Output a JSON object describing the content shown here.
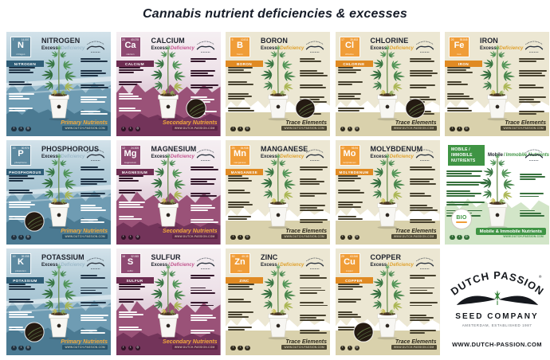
{
  "page": {
    "title": "Cannabis nutrient deficiencies & excesses"
  },
  "labels": {
    "excess": "Excess",
    "separator": "/",
    "deficiency": "Deficiency"
  },
  "branding": {
    "stamp_name": "Dutch Passion",
    "arc_text": "DUTCH PASSION",
    "registered_mark": "®",
    "seed_company": "SEED COMPANY",
    "established": "AMSTERDAM, ESTABLISHED 1987",
    "website": "WWW.DUTCH-PASSION.COM"
  },
  "categories": {
    "primary": "Primary Nutrients",
    "secondary": "Secondary Nutrients",
    "trace": "Trace Elements",
    "mobility": "Mobile & Immobile Nutrients"
  },
  "colors": {
    "primary_blue": "#6f9cb3",
    "secondary_purple": "#9a5278",
    "trace_cream": "#ece7d3",
    "trace_orange": "#f09d38",
    "mobility_green": "#3f9444",
    "badge_gold": "#f2a93b",
    "title_ink": "#20242e"
  },
  "grid": [
    {
      "type": "nutrient",
      "id": "nitrogen",
      "title": "NITROGEN",
      "symbol": "N",
      "atomic_number": "7",
      "atomic_mass": "14.007",
      "element_name": "nitrogen",
      "element_label": "NITROGEN",
      "theme": "blue",
      "category": "primary",
      "inset": null
    },
    {
      "type": "nutrient",
      "id": "calcium",
      "title": "CALCIUM",
      "symbol": "Ca",
      "atomic_number": "20",
      "atomic_mass": "40.078",
      "element_name": "calcium",
      "element_label": "CALCIUM",
      "theme": "purple",
      "category": "secondary",
      "inset": "br"
    },
    {
      "type": "nutrient",
      "id": "boron",
      "title": "BORON",
      "symbol": "B",
      "atomic_number": "5",
      "atomic_mass": "10.811",
      "element_name": "boron",
      "element_label": "BORON",
      "theme": "cream",
      "category": "trace",
      "inset": "br"
    },
    {
      "type": "nutrient",
      "id": "chlorine",
      "title": "CHLORINE",
      "symbol": "Cl",
      "atomic_number": "17",
      "atomic_mass": "35.453",
      "element_name": "chlorine",
      "element_label": "CHLORINE",
      "theme": "cream",
      "category": "trace",
      "inset": "br"
    },
    {
      "type": "nutrient",
      "id": "iron",
      "title": "IRON",
      "symbol": "Fe",
      "atomic_number": "26",
      "atomic_mass": "55.845",
      "element_name": "iron",
      "element_label": "IRON",
      "theme": "cream",
      "category": "trace",
      "inset": null
    },
    {
      "type": "nutrient",
      "id": "phosphorous",
      "title": "PHOSPHOROUS",
      "symbol": "P",
      "atomic_number": "15",
      "atomic_mass": "30.974",
      "element_name": "phosphorus",
      "element_label": "PHOSPHOROUS",
      "theme": "blue",
      "category": "primary",
      "inset": "bl"
    },
    {
      "type": "nutrient",
      "id": "magnesium",
      "title": "MAGNESIUM",
      "symbol": "Mg",
      "atomic_number": "12",
      "atomic_mass": "24.305",
      "element_name": "magnesium",
      "element_label": "MAGNESIUM",
      "theme": "purple",
      "category": "secondary",
      "inset": null
    },
    {
      "type": "nutrient",
      "id": "manganese",
      "title": "MANGANESE",
      "symbol": "Mn",
      "atomic_number": "25",
      "atomic_mass": "54.938",
      "element_name": "manganese",
      "element_label": "MANGANESE",
      "theme": "cream",
      "category": "trace",
      "inset": null
    },
    {
      "type": "nutrient",
      "id": "molybdenum",
      "title": "MOLYBDENUM",
      "symbol": "Mo",
      "atomic_number": "42",
      "atomic_mass": "95.94",
      "element_name": "molybdenum",
      "element_label": "MOLYBDENUM",
      "theme": "cream",
      "category": "trace",
      "inset": null
    },
    {
      "type": "mobility",
      "id": "mobility",
      "box_lines": [
        "MOBILE /",
        "IMMOBILE",
        "NUTRIENTS"
      ],
      "title_mobile": "Mobile",
      "title_separator": "/",
      "title_immobile": "Immobile Nutrients",
      "bio_label": "BIO",
      "theme": "green",
      "category": "mobility"
    },
    {
      "type": "nutrient",
      "id": "potassium",
      "title": "POTASSIUM",
      "symbol": "K",
      "atomic_number": "19",
      "atomic_mass": "39.098",
      "element_name": "potassium",
      "element_label": "POTASSIUM",
      "theme": "blue",
      "category": "primary",
      "inset": "bl"
    },
    {
      "type": "nutrient",
      "id": "sulfur",
      "title": "SULFUR",
      "symbol": "S",
      "atomic_number": "16",
      "atomic_mass": "32.065",
      "element_name": "sulfur",
      "element_label": "SULFUR",
      "theme": "purple",
      "category": "secondary",
      "inset": null
    },
    {
      "type": "nutrient",
      "id": "zinc",
      "title": "ZINC",
      "symbol": "Zn",
      "atomic_number": "30",
      "atomic_mass": "65.38",
      "element_name": "zinc",
      "element_label": "ZINC",
      "theme": "cream",
      "category": "trace",
      "inset": null
    },
    {
      "type": "nutrient",
      "id": "copper",
      "title": "COPPER",
      "symbol": "Cu",
      "atomic_number": "29",
      "atomic_mass": "63.546",
      "element_name": "copper",
      "element_label": "COPPER",
      "theme": "cream",
      "category": "trace",
      "inset": "bl"
    },
    {
      "type": "logo",
      "id": "dutch-passion-logo"
    }
  ]
}
